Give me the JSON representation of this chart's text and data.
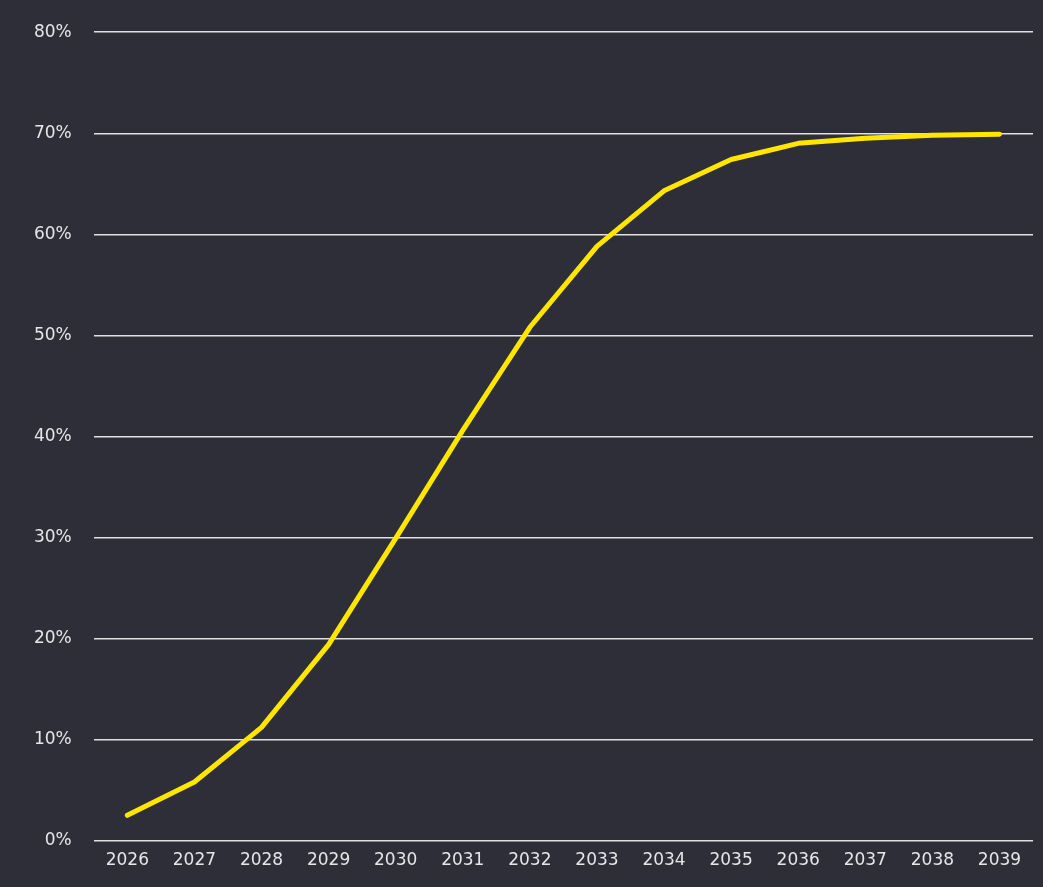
{
  "chart_data": {
    "type": "line",
    "categories": [
      "2026",
      "2027",
      "2028",
      "2029",
      "2030",
      "2031",
      "2032",
      "2033",
      "2034",
      "2035",
      "2036",
      "2037",
      "2038",
      "2039"
    ],
    "series": [
      {
        "color": "#ffe600",
        "values": [
          2.5,
          5.8,
          11.2,
          19.4,
          29.9,
          40.6,
          50.8,
          58.8,
          64.3,
          67.4,
          69.0,
          69.5,
          69.8,
          69.9
        ]
      }
    ],
    "ylim": [
      0,
      80
    ],
    "yticks": [
      {
        "value": 0,
        "label": "0%"
      },
      {
        "value": 10,
        "label": "10%"
      },
      {
        "value": 20,
        "label": "20%"
      },
      {
        "value": 30,
        "label": "30%"
      },
      {
        "value": 40,
        "label": "40%"
      },
      {
        "value": 50,
        "label": "50%"
      },
      {
        "value": 60,
        "label": "60%"
      },
      {
        "value": 70,
        "label": "70%"
      },
      {
        "value": 80,
        "label": "80%"
      }
    ],
    "grid": "y",
    "legend": false,
    "marker": "none",
    "line_style": "solid"
  }
}
